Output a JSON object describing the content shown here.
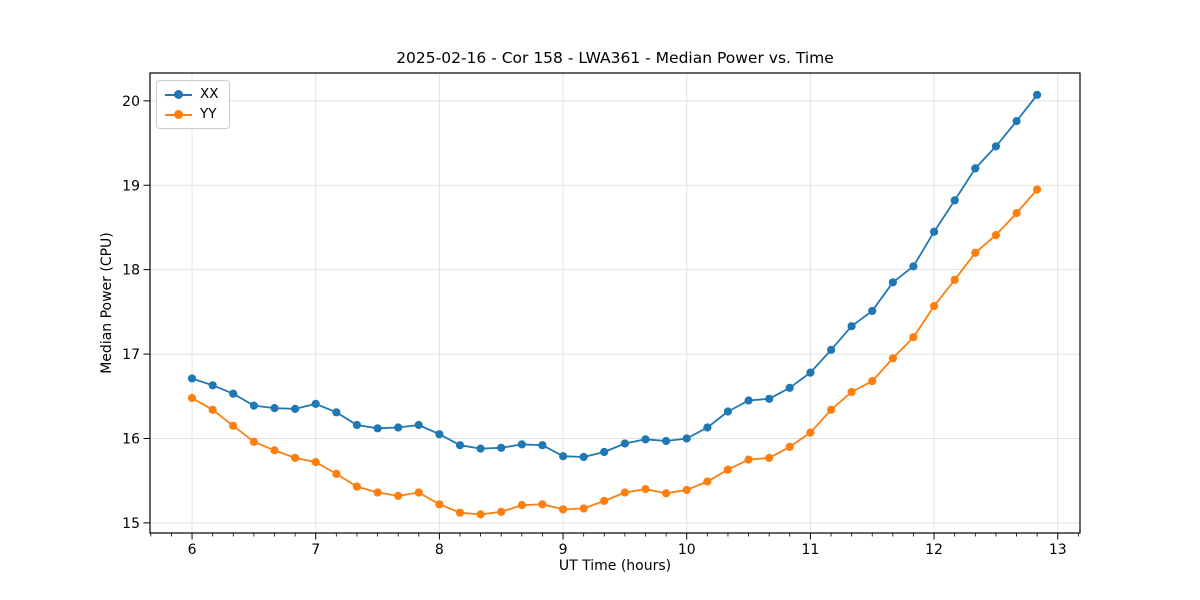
{
  "chart_data": {
    "type": "line",
    "title": "2025-02-16 - Cor 158 - LWA361 - Median Power vs. Time",
    "xlabel": "UT Time (hours)",
    "ylabel": "Median Power (CPU)",
    "xlim": [
      5.66,
      13.18
    ],
    "ylim": [
      14.88,
      20.33
    ],
    "x_major_ticks": [
      6,
      7,
      8,
      9,
      10,
      11,
      12,
      13
    ],
    "y_major_ticks": [
      15,
      16,
      17,
      18,
      19,
      20
    ],
    "x_minor_step": 0.166667,
    "grid": true,
    "grid_color": "#e2e2e2",
    "legend_position": "upper-left",
    "x": [
      6.0,
      6.167,
      6.333,
      6.5,
      6.667,
      6.833,
      7.0,
      7.167,
      7.333,
      7.5,
      7.667,
      7.833,
      8.0,
      8.167,
      8.333,
      8.5,
      8.667,
      8.833,
      9.0,
      9.167,
      9.333,
      9.5,
      9.667,
      9.833,
      10.0,
      10.167,
      10.333,
      10.5,
      10.667,
      10.833,
      11.0,
      11.167,
      11.333,
      11.5,
      11.667,
      11.833,
      12.0,
      12.167,
      12.333,
      12.5,
      12.667,
      12.833
    ],
    "series": [
      {
        "name": "XX",
        "color": "#1f77b4",
        "values": [
          16.71,
          16.63,
          16.53,
          16.39,
          16.36,
          16.35,
          16.41,
          16.31,
          16.16,
          16.12,
          16.13,
          16.16,
          16.05,
          15.92,
          15.88,
          15.89,
          15.93,
          15.92,
          15.79,
          15.78,
          15.84,
          15.94,
          15.99,
          15.97,
          16.0,
          16.13,
          16.32,
          16.45,
          16.47,
          16.6,
          16.78,
          17.05,
          17.33,
          17.51,
          17.85,
          18.04,
          18.45,
          18.82,
          19.2,
          19.46,
          19.76,
          20.07
        ]
      },
      {
        "name": "YY",
        "color": "#ff7f0e",
        "values": [
          16.48,
          16.34,
          16.15,
          15.96,
          15.86,
          15.77,
          15.72,
          15.58,
          15.43,
          15.36,
          15.32,
          15.36,
          15.22,
          15.12,
          15.1,
          15.13,
          15.21,
          15.22,
          15.16,
          15.17,
          15.26,
          15.36,
          15.4,
          15.35,
          15.39,
          15.49,
          15.63,
          15.75,
          15.77,
          15.9,
          16.07,
          16.34,
          16.55,
          16.68,
          16.95,
          17.2,
          17.57,
          17.88,
          18.2,
          18.41,
          18.67,
          18.95
        ]
      }
    ]
  }
}
